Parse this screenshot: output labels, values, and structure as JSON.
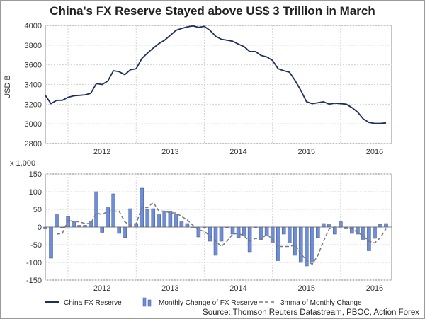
{
  "chart_data": [
    {
      "type": "line",
      "title": "China's FX Reserve Stayed above US$ 3 Trillion in March",
      "ylabel": "USD B",
      "xlabel": "",
      "ylim": [
        2800,
        4000
      ],
      "yticks": [
        2800,
        3000,
        3200,
        3400,
        3600,
        3800,
        4000
      ],
      "x_start": 2011.667,
      "x_step": 0.08333,
      "year_labels": [
        "2012",
        "2013",
        "2014",
        "2015",
        "2016"
      ],
      "series": [
        {
          "name": "China FX Reserve",
          "color": "#1f2f5c",
          "values": [
            3290,
            3205,
            3240,
            3240,
            3270,
            3285,
            3290,
            3295,
            3310,
            3410,
            3400,
            3435,
            3540,
            3530,
            3500,
            3550,
            3560,
            3665,
            3720,
            3770,
            3815,
            3850,
            3900,
            3950,
            3970,
            3985,
            3995,
            3980,
            3990,
            3950,
            3890,
            3860,
            3850,
            3840,
            3810,
            3785,
            3735,
            3735,
            3695,
            3680,
            3645,
            3560,
            3540,
            3525,
            3440,
            3340,
            3225,
            3205,
            3215,
            3225,
            3200,
            3210,
            3205,
            3200,
            3165,
            3120,
            3050,
            3015,
            3005,
            3005,
            3010
          ]
        }
      ]
    },
    {
      "type": "bar",
      "ylabel": "x 1,000",
      "ylim": [
        -150,
        150
      ],
      "yticks": [
        -150,
        -100,
        -50,
        0,
        50,
        100,
        150
      ],
      "x_start": 2011.667,
      "x_step": 0.08333,
      "year_labels": [
        "2012",
        "2013",
        "2014",
        "2015",
        "2016"
      ],
      "series": [
        {
          "name": "Monthly Change of FX Reserve",
          "color": "#6e8fd8",
          "values": [
            -5,
            -88,
            35,
            0,
            30,
            15,
            5,
            5,
            15,
            100,
            -15,
            55,
            94,
            -18,
            -30,
            52,
            10,
            110,
            50,
            52,
            35,
            45,
            45,
            35,
            15,
            10,
            -3,
            -28,
            0,
            -40,
            -80,
            -40,
            0,
            -20,
            -30,
            -25,
            -70,
            0,
            -35,
            -25,
            -45,
            -95,
            -20,
            -45,
            -80,
            -100,
            -110,
            -100,
            -30,
            10,
            7,
            -20,
            15,
            -5,
            -18,
            -20,
            -35,
            -67,
            -32,
            8,
            10
          ]
        },
        {
          "name": "3mma of Monthly Change",
          "color": "#7a7a7a",
          "values": [
            null,
            null,
            -20,
            -18,
            20,
            15,
            15,
            10,
            10,
            40,
            35,
            45,
            45,
            45,
            15,
            5,
            10,
            55,
            55,
            70,
            45,
            45,
            40,
            40,
            30,
            20,
            5,
            -8,
            -12,
            -25,
            -40,
            -55,
            -40,
            -20,
            -18,
            -25,
            -40,
            -32,
            -35,
            -20,
            -35,
            -55,
            -55,
            -55,
            -50,
            -75,
            -95,
            -105,
            -80,
            -40,
            -5,
            0,
            0,
            -3,
            -5,
            -15,
            -25,
            -40,
            -45,
            -30,
            -5
          ]
        }
      ]
    }
  ],
  "legend": {
    "line_label": "China FX Reserve",
    "bar_label": "Monthly Change of FX Reserve",
    "ma_label": "3mma of Monthly Change"
  },
  "source": "Source: Thomson Reuters Datastream, PBOC, Action Forex"
}
